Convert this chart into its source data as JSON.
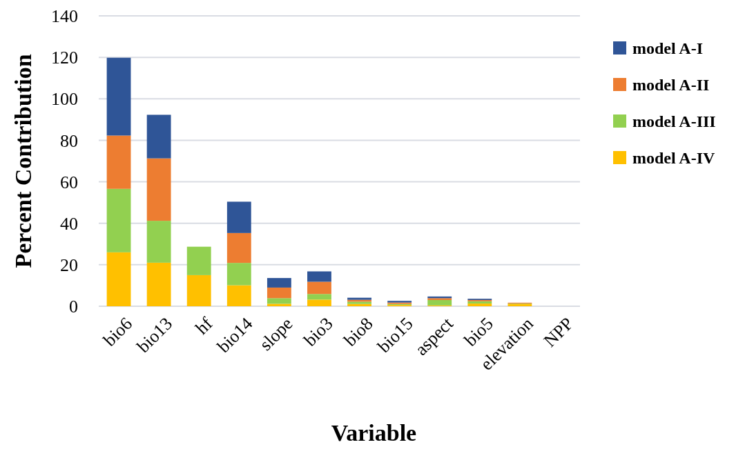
{
  "chart_data": {
    "type": "bar",
    "stacked": true,
    "xlabel": "Variable",
    "ylabel": "Percent Contribution",
    "categories": [
      "bio6",
      "bio13",
      "hf",
      "bio14",
      "slope",
      "bio3",
      "bio8",
      "bio15",
      "aspect",
      "bio5",
      "elevation",
      "NPP"
    ],
    "series": [
      {
        "name": "model A-IV",
        "color": "#ffc000",
        "values": [
          26,
          21,
          15,
          10.1,
          1.2,
          3.2,
          1.1,
          0.6,
          0.4,
          1.3,
          1.1,
          0
        ]
      },
      {
        "name": "model A-III",
        "color": "#92d050",
        "values": [
          30.6,
          20.2,
          13.7,
          10.8,
          2.7,
          2.7,
          1.1,
          0.5,
          2.6,
          1.1,
          0.2,
          0
        ]
      },
      {
        "name": "model A-II",
        "color": "#ed7d31",
        "values": [
          25.7,
          30.1,
          0,
          14.4,
          5.1,
          5.9,
          0.9,
          0.7,
          0.9,
          0.6,
          0.4,
          0
        ]
      },
      {
        "name": "model A-I",
        "color": "#2f5597",
        "values": [
          37.5,
          21,
          0,
          15.1,
          4.6,
          5,
          1,
          0.8,
          0.8,
          0.6,
          null,
          0
        ]
      }
    ],
    "ylim": [
      0,
      140
    ],
    "yticks": [
      0,
      20,
      40,
      60,
      80,
      100,
      120,
      140
    ],
    "grid": "y",
    "legend": "right"
  }
}
